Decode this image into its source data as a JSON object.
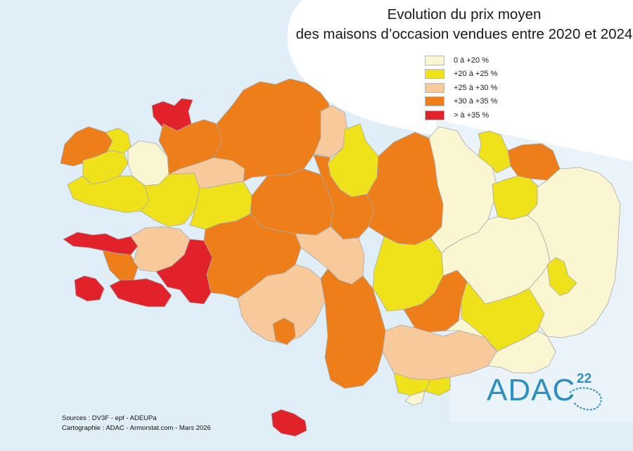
{
  "map": {
    "title_line1": "Evolution du prix moyen",
    "title_line2": "des maisons d’occasion vendues entre 2020 et 2024",
    "legend": [
      {
        "label": "0 à +20 %",
        "color": "#fbf6d2"
      },
      {
        "label": "+20 à +25 %",
        "color": "#efe21a"
      },
      {
        "label": "+25 à +30 %",
        "color": "#f8c99b"
      },
      {
        "label": "+30 à +35 %",
        "color": "#ee7e1a"
      },
      {
        "label": "> à +35 %",
        "color": "#e2222b"
      }
    ],
    "sources": "Sources : DV3F - epf - ADEUPa",
    "cartography": "Cartographie : ADAC - Armorstat.com - Mars 2026",
    "logo_text": "ADAC",
    "logo_number": "22",
    "colors": {
      "sea": "#dfeef7",
      "white_area": "#ffffff",
      "border": "#a9a9a9",
      "logo": "#2d8fc4"
    }
  }
}
